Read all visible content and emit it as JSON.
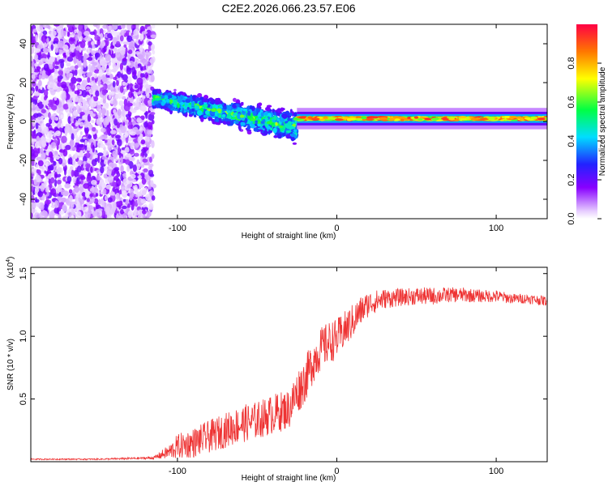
{
  "chart_data": [
    {
      "type": "heatmap",
      "title": "C2E2.2026.066.23.57.E06",
      "xlabel": "Height of straight line (km)",
      "ylabel": "Frequency (Hz)",
      "xlim": [
        -192,
        132
      ],
      "ylim": [
        -50,
        50
      ],
      "xticks": [
        -100,
        0,
        100
      ],
      "yticks": [
        -40,
        -20,
        0,
        20,
        40
      ],
      "xtick_labels": [
        "-100",
        "0",
        "100"
      ],
      "ytick_labels": [
        "-40",
        "-20",
        "0",
        "20",
        "40"
      ],
      "colorbar": {
        "label": "Normalized spectral amplitude",
        "range": [
          0,
          1
        ],
        "ticks": [
          0.0,
          0.2,
          0.4,
          0.6,
          0.8
        ],
        "tick_labels": [
          "0.0",
          "0.2",
          "0.4",
          "0.6",
          "0.8"
        ],
        "colormap": [
          "#ffffff",
          "#e6ccff",
          "#8800ff",
          "#2222ff",
          "#00ddff",
          "#00ff44",
          "#ffff00",
          "#ff7700",
          "#ff0044"
        ]
      },
      "regions": [
        {
          "description": "broadband noise",
          "x_range": [
            -192,
            -115
          ],
          "freq_range": [
            -50,
            50
          ],
          "amplitude": 0.1
        },
        {
          "description": "spreading signal",
          "x_range": [
            -115,
            -25
          ],
          "freq_center": [
            12,
            -3
          ],
          "spread_hz": [
            6,
            10
          ],
          "amplitude": 0.35
        },
        {
          "description": "narrow tone",
          "x_range": [
            -25,
            132
          ],
          "freq_center": 1.5,
          "spread_hz": 2.5,
          "amplitude": 0.85
        }
      ]
    },
    {
      "type": "line",
      "xlabel": "Height of straight line (km)",
      "ylabel": "SNR (10 * v/v)",
      "y_multiplier": "(x10",
      "y_multiplier_exp": "4",
      "y_multiplier_close": ")",
      "xlim": [
        -192,
        132
      ],
      "ylim": [
        0,
        1.55
      ],
      "xticks": [
        -100,
        0,
        100
      ],
      "yticks": [
        0.5,
        1.0,
        1.5
      ],
      "xtick_labels": [
        "-100",
        "0",
        "100"
      ],
      "ytick_labels": [
        "0.5",
        "1.0",
        "1.5"
      ],
      "series": [
        {
          "name": "SNR",
          "color": "#ee3333",
          "x": [
            -192,
            -150,
            -115,
            -105,
            -100,
            -90,
            -80,
            -70,
            -60,
            -50,
            -40,
            -30,
            -25,
            -20,
            -15,
            -10,
            -5,
            0,
            5,
            10,
            15,
            20,
            25,
            30,
            40,
            50,
            60,
            70,
            80,
            90,
            100,
            110,
            120,
            132
          ],
          "y": [
            0.02,
            0.02,
            0.03,
            0.08,
            0.12,
            0.15,
            0.2,
            0.25,
            0.3,
            0.33,
            0.38,
            0.42,
            0.55,
            0.65,
            0.8,
            0.9,
            0.95,
            0.98,
            1.05,
            1.12,
            1.2,
            1.26,
            1.28,
            1.3,
            1.31,
            1.32,
            1.32,
            1.33,
            1.33,
            1.32,
            1.32,
            1.3,
            1.3,
            1.28
          ],
          "noise_amplitude": [
            0.005,
            0.005,
            0.01,
            0.06,
            0.1,
            0.12,
            0.13,
            0.14,
            0.15,
            0.15,
            0.16,
            0.16,
            0.18,
            0.18,
            0.18,
            0.17,
            0.17,
            0.16,
            0.15,
            0.14,
            0.12,
            0.1,
            0.09,
            0.08,
            0.07,
            0.07,
            0.07,
            0.06,
            0.06,
            0.05,
            0.05,
            0.04,
            0.04,
            0.04
          ]
        }
      ]
    }
  ]
}
